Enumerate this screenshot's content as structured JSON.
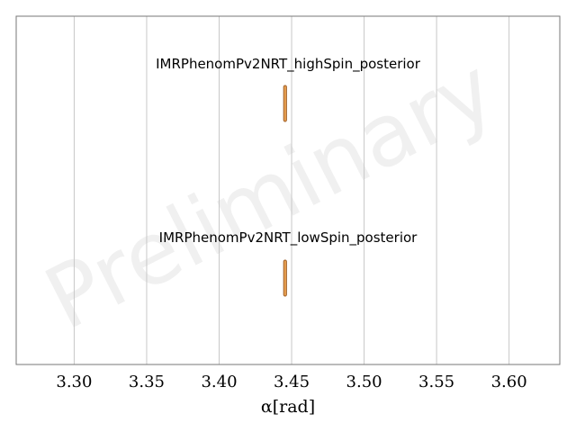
{
  "chart_data": {
    "type": "violin",
    "xlabel": "α[rad]",
    "xlim": [
      3.26,
      3.635
    ],
    "xticks": [
      3.3,
      3.35,
      3.4,
      3.45,
      3.5,
      3.55,
      3.6
    ],
    "xtick_labels": [
      "3.30",
      "3.35",
      "3.40",
      "3.45",
      "3.50",
      "3.55",
      "3.60"
    ],
    "grid": "vertical",
    "series": [
      {
        "name": "IMRPhenomPv2NRT_highSpin_posterior",
        "center": 3.4455,
        "spread": 0.001
      },
      {
        "name": "IMRPhenomPv2NRT_lowSpin_posterior",
        "center": 3.4455,
        "spread": 0.001
      }
    ],
    "colors": {
      "violin_fill": "#e8a050",
      "violin_edge": "#a0602a",
      "grid": "#c8c8c8",
      "frame": "#777777"
    }
  },
  "watermark": "Preliminary"
}
